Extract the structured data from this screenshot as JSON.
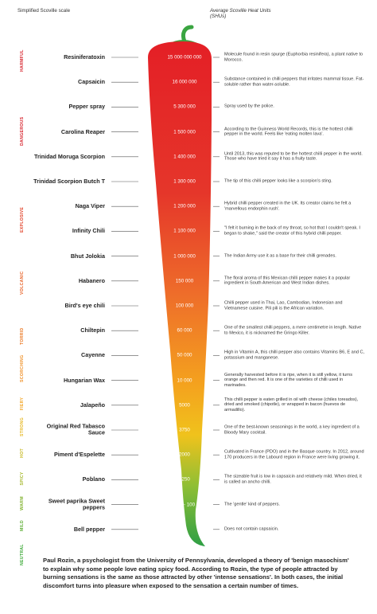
{
  "header": {
    "left": "Simplified Scoville scale",
    "right_line1": "Average Scoville Heat Units",
    "right_line2": "(SHUs)"
  },
  "scale_words": [
    {
      "label": "HARMFUL",
      "color": "#d7262f",
      "row": 0.5
    },
    {
      "label": "DANGEROUS",
      "color": "#d7262f",
      "row": 3.5
    },
    {
      "label": "EXPLOSIVE",
      "color": "#e2452c",
      "row": 7
    },
    {
      "label": "VOLCANIC",
      "color": "#e8652b",
      "row": 9.5
    },
    {
      "label": "TORRID",
      "color": "#ec7d2a",
      "row": 11.5
    },
    {
      "label": "SCORCHING",
      "color": "#f0922a",
      "row": 13
    },
    {
      "label": "FIERY",
      "color": "#f3a728",
      "row": 14.2
    },
    {
      "label": "STRONG",
      "color": "#e7b928",
      "row": 15.2
    },
    {
      "label": "HOT",
      "color": "#c9bb2a",
      "row": 16.2
    },
    {
      "label": "SPICY",
      "color": "#a6b82d",
      "row": 17.2
    },
    {
      "label": "WARM",
      "color": "#82b331",
      "row": 18.2
    },
    {
      "label": "MILD",
      "color": "#5eae35",
      "row": 19.1
    },
    {
      "label": "NEUTRAL",
      "color": "#3faa3a",
      "row": 20.4
    }
  ],
  "chart_data": {
    "type": "table",
    "rows": [
      {
        "name": "Resiniferatoxin",
        "shu": "15 000 000 000",
        "value": 15000000000,
        "desc": "Molecule found in resin spurge (Euphorbia resinifera), a plant native to Morocco."
      },
      {
        "name": "Capsaicin",
        "shu": "16 000 000",
        "value": 16000000,
        "desc": "Substance contained in chilli peppers that irritates mammal tissue. Fat-soluble rather than water-soluble."
      },
      {
        "name": "Pepper spray",
        "shu": "5 300 000",
        "value": 5300000,
        "desc": "Spray used by the police."
      },
      {
        "name": "Carolina Reaper",
        "shu": "1 500 000",
        "value": 1500000,
        "desc": "According to the Guinness World Records, this is the hottest chilli pepper in the world. Feels like 'eating molten lava'."
      },
      {
        "name": "Trinidad Moruga Scorpion",
        "shu": "1 400 000",
        "value": 1400000,
        "desc": "Until 2013, this was reputed to be the hottest chilli pepper in the world. Those who have tried it say it has a fruity taste."
      },
      {
        "name": "Trinidad Scorpion Butch T",
        "shu": "1 300 000",
        "value": 1300000,
        "desc": "The tip of this chilli pepper looks like a scorpion's sting."
      },
      {
        "name": "Naga Viper",
        "shu": "1 200 000",
        "value": 1200000,
        "desc": "Hybrid chilli pepper created in the UK. Its creator claims he felt a 'marvellous endorphin rush'."
      },
      {
        "name": "Infinity Chili",
        "shu": "1 100 000",
        "value": 1100000,
        "desc": "\"I felt it burning in the back of my throat, so hot that I couldn't speak. I began to shake,\" said the creator of this hybrid chilli pepper."
      },
      {
        "name": "Bhut Jolokia",
        "shu": "1 000 000",
        "value": 1000000,
        "desc": "The Indian Army use it as a base for their chilli grenades."
      },
      {
        "name": "Habanero",
        "shu": "150 000",
        "value": 150000,
        "desc": "The floral aroma of this Mexican chilli pepper makes it a popular ingredient in South American and West Indian dishes."
      },
      {
        "name": "Bird's eye chili",
        "shu": "100 000",
        "value": 100000,
        "desc": "Chilli pepper used in Thai, Lao, Cambodian, Indonesian and Vietnamese cuisine. Pili pili is the African variation."
      },
      {
        "name": "Chiltepin",
        "shu": "60 000",
        "value": 60000,
        "desc": "One of the smallest chilli peppers, a mere centimetre in length. Native to Mexico, it is nicknamed the Gringo Killer."
      },
      {
        "name": "Cayenne",
        "shu": "50 000",
        "value": 50000,
        "desc": "High in Vitamin A, this chilli pepper also contains Vitamins B6, E and C, potassium and manganese."
      },
      {
        "name": "Hungarian Wax",
        "shu": "10 000",
        "value": 10000,
        "desc": "Generally harvested before it is ripe, when it is still yellow, it turns orange and then red. It is one of the varieties of chilli used in marinades."
      },
      {
        "name": "Jalapeño",
        "shu": "5000",
        "value": 5000,
        "desc": "This chilli pepper is eaten grilled in oil with cheese (chiles toreados), dried and smoked (chipotle), or wrapped in bacon (huevos de armadillo)."
      },
      {
        "name": "Original Red Tabasco Sauce",
        "shu": "3750",
        "value": 3750,
        "desc": "One of the best-known seasonings in the world, a key ingredient of a Bloody Mary cocktail."
      },
      {
        "name": "Piment d'Espelette",
        "shu": "2000",
        "value": 2000,
        "desc": "Cultivated in France (PDO) and in the Basque country. In 2012, around 170 producers in the Labourd region in France were living growing it."
      },
      {
        "name": "Poblano",
        "shu": "1250",
        "value": 1250,
        "desc": "The sizeable fruit is low in capsaicin and relatively mild. When dried, it is called an ancho chilli."
      },
      {
        "name": "Sweet paprika Sweet peppers",
        "shu": "500 - 100",
        "value": 500,
        "desc": "The 'gentle' kind of peppers."
      },
      {
        "name": "Bell pepper",
        "shu": "0",
        "value": 0,
        "desc": "Does not contain capsaicin."
      }
    ]
  },
  "colors": {
    "stem": "#3aa541",
    "gradient_top": "#e41f26",
    "gradient_mid": "#f4a21e",
    "gradient_bottom": "#2e9f45",
    "line": "#555555"
  },
  "footer": {
    "text": "Paul Rozin, a psychologist from the University of Pennsylvania, developed a theory of 'benign masochism' to explain why some people love eating spicy food. According to Rozin, the type of people attracted by burning sensations is the same as those attracted by other 'intense sensations'. In both cases, the initial discomfort turns into pleasure when exposed to the sensation a certain number of times."
  }
}
